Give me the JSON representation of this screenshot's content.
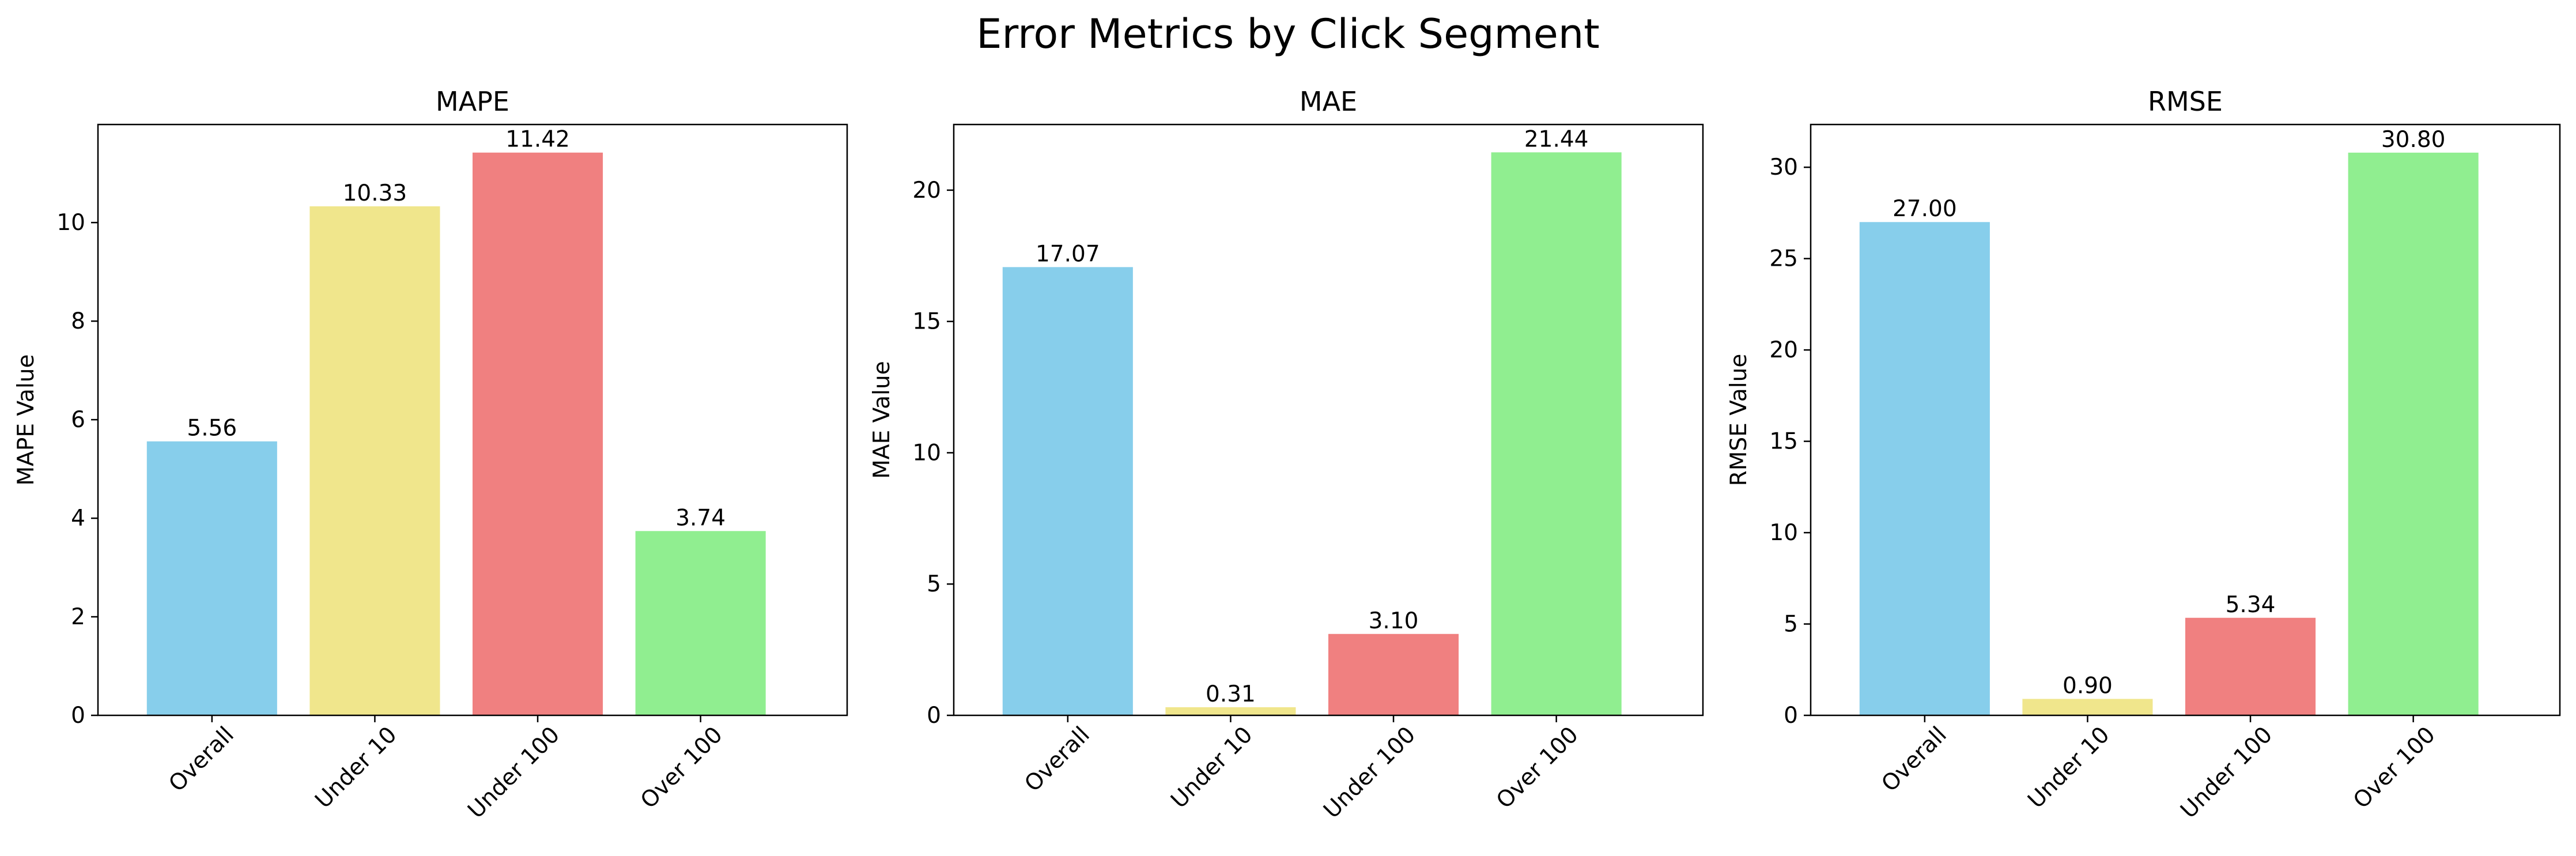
{
  "figure": {
    "title": "Error Metrics by Click Segment"
  },
  "chart_data": [
    {
      "type": "bar",
      "title": "MAPE",
      "xlabel": "",
      "ylabel": "MAPE Value",
      "categories": [
        "Overall",
        "Under 10",
        "Under 100",
        "Over 100"
      ],
      "values": [
        5.56,
        10.33,
        11.42,
        3.74
      ],
      "value_labels": [
        "5.56",
        "10.33",
        "11.42",
        "3.74"
      ],
      "colors": [
        "#87CEEB",
        "#F0E68C",
        "#F08080",
        "#90EE90"
      ],
      "ylim": [
        0,
        11.99
      ],
      "yticks": [
        0,
        2,
        4,
        6,
        8,
        10
      ],
      "grid": false
    },
    {
      "type": "bar",
      "title": "MAE",
      "xlabel": "",
      "ylabel": "MAE Value",
      "categories": [
        "Overall",
        "Under 10",
        "Under 100",
        "Over 100"
      ],
      "values": [
        17.07,
        0.31,
        3.1,
        21.44
      ],
      "value_labels": [
        "17.07",
        "0.31",
        "3.10",
        "21.44"
      ],
      "colors": [
        "#87CEEB",
        "#F0E68C",
        "#F08080",
        "#90EE90"
      ],
      "ylim": [
        0,
        22.5
      ],
      "yticks": [
        0,
        5,
        10,
        15,
        20
      ],
      "grid": false
    },
    {
      "type": "bar",
      "title": "RMSE",
      "xlabel": "",
      "ylabel": "RMSE Value",
      "categories": [
        "Overall",
        "Under 10",
        "Under 100",
        "Over 100"
      ],
      "values": [
        27.0,
        0.9,
        5.34,
        30.8
      ],
      "value_labels": [
        "27.00",
        "0.90",
        "5.34",
        "30.80"
      ],
      "colors": [
        "#87CEEB",
        "#F0E68C",
        "#F08080",
        "#90EE90"
      ],
      "ylim": [
        0,
        32.34
      ],
      "yticks": [
        0,
        5,
        10,
        15,
        20,
        25,
        30
      ],
      "grid": false
    }
  ]
}
